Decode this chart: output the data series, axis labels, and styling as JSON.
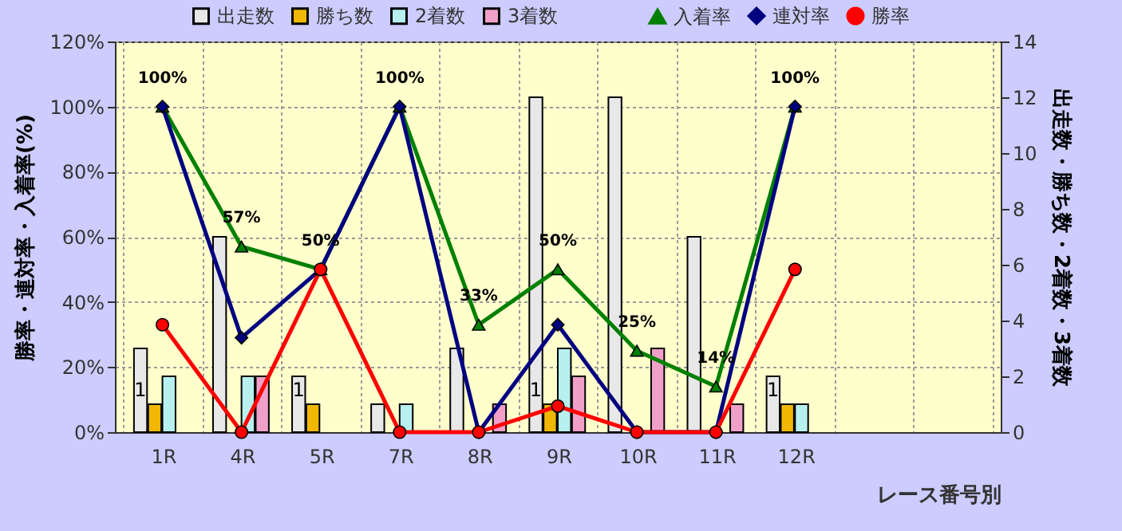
{
  "chart_data": {
    "type": "bar",
    "xlabel": "レース番号別",
    "ylabel": "勝率・連対率・入着率(%)",
    "y2label": "出走数・勝ち数・2着数・3着数",
    "categories": [
      "1R",
      "4R",
      "5R",
      "7R",
      "8R",
      "9R",
      "10R",
      "11R",
      "12R",
      null,
      null
    ],
    "series": [
      {
        "name": "出走数",
        "type": "bar",
        "axis": "y2",
        "color": "#e8e8e8",
        "values": [
          3,
          7,
          2,
          1,
          3,
          12,
          12,
          7,
          2,
          null,
          null
        ]
      },
      {
        "name": "勝ち数",
        "type": "bar",
        "axis": "y2",
        "color": "#f0b800",
        "values": [
          1,
          0,
          1,
          0,
          0,
          1,
          0,
          0,
          1,
          null,
          null
        ],
        "value_labels": [
          "1",
          null,
          "1",
          null,
          null,
          "1",
          null,
          null,
          "1",
          null,
          null
        ]
      },
      {
        "name": "2着数",
        "type": "bar",
        "axis": "y2",
        "color": "#b8f0f0",
        "values": [
          2,
          2,
          0,
          1,
          0,
          3,
          0,
          0,
          1,
          null,
          null
        ]
      },
      {
        "name": "3着数",
        "type": "bar",
        "axis": "y2",
        "color": "#f0a0c8",
        "values": [
          0,
          2,
          0,
          0,
          1,
          2,
          3,
          1,
          0,
          null,
          null
        ]
      },
      {
        "name": "入着率",
        "type": "line",
        "color": "#008000",
        "marker": "triangle",
        "values": [
          100,
          57,
          50,
          100,
          33,
          50,
          25,
          14,
          100,
          null,
          null
        ],
        "value_labels": [
          "100%",
          "57%",
          "50%",
          "100%",
          "33%",
          "50%",
          "25%",
          "14%",
          "100%",
          null,
          null
        ]
      },
      {
        "name": "連対率",
        "type": "line",
        "color": "#000080",
        "marker": "diamond",
        "values": [
          100,
          29,
          50,
          100,
          0,
          33,
          0,
          0,
          100,
          null,
          null
        ]
      },
      {
        "name": "勝率",
        "type": "line",
        "color": "#ff0000",
        "marker": "circle",
        "values": [
          33,
          0,
          50,
          0,
          0,
          8,
          0,
          0,
          50,
          null,
          null
        ]
      }
    ],
    "ylim": [
      0,
      120
    ],
    "yticks": [
      {
        "value": 0,
        "label": "0%"
      },
      {
        "value": 20,
        "label": "20%"
      },
      {
        "value": 40,
        "label": "40%"
      },
      {
        "value": 60,
        "label": "60%"
      },
      {
        "value": 80,
        "label": "80%"
      },
      {
        "value": 100,
        "label": "100%"
      },
      {
        "value": 120,
        "label": "120%"
      }
    ],
    "y2lim": [
      0,
      14
    ],
    "y2ticks": [
      0,
      2,
      4,
      6,
      8,
      10,
      12,
      14
    ],
    "grid": true,
    "legend": "top"
  }
}
